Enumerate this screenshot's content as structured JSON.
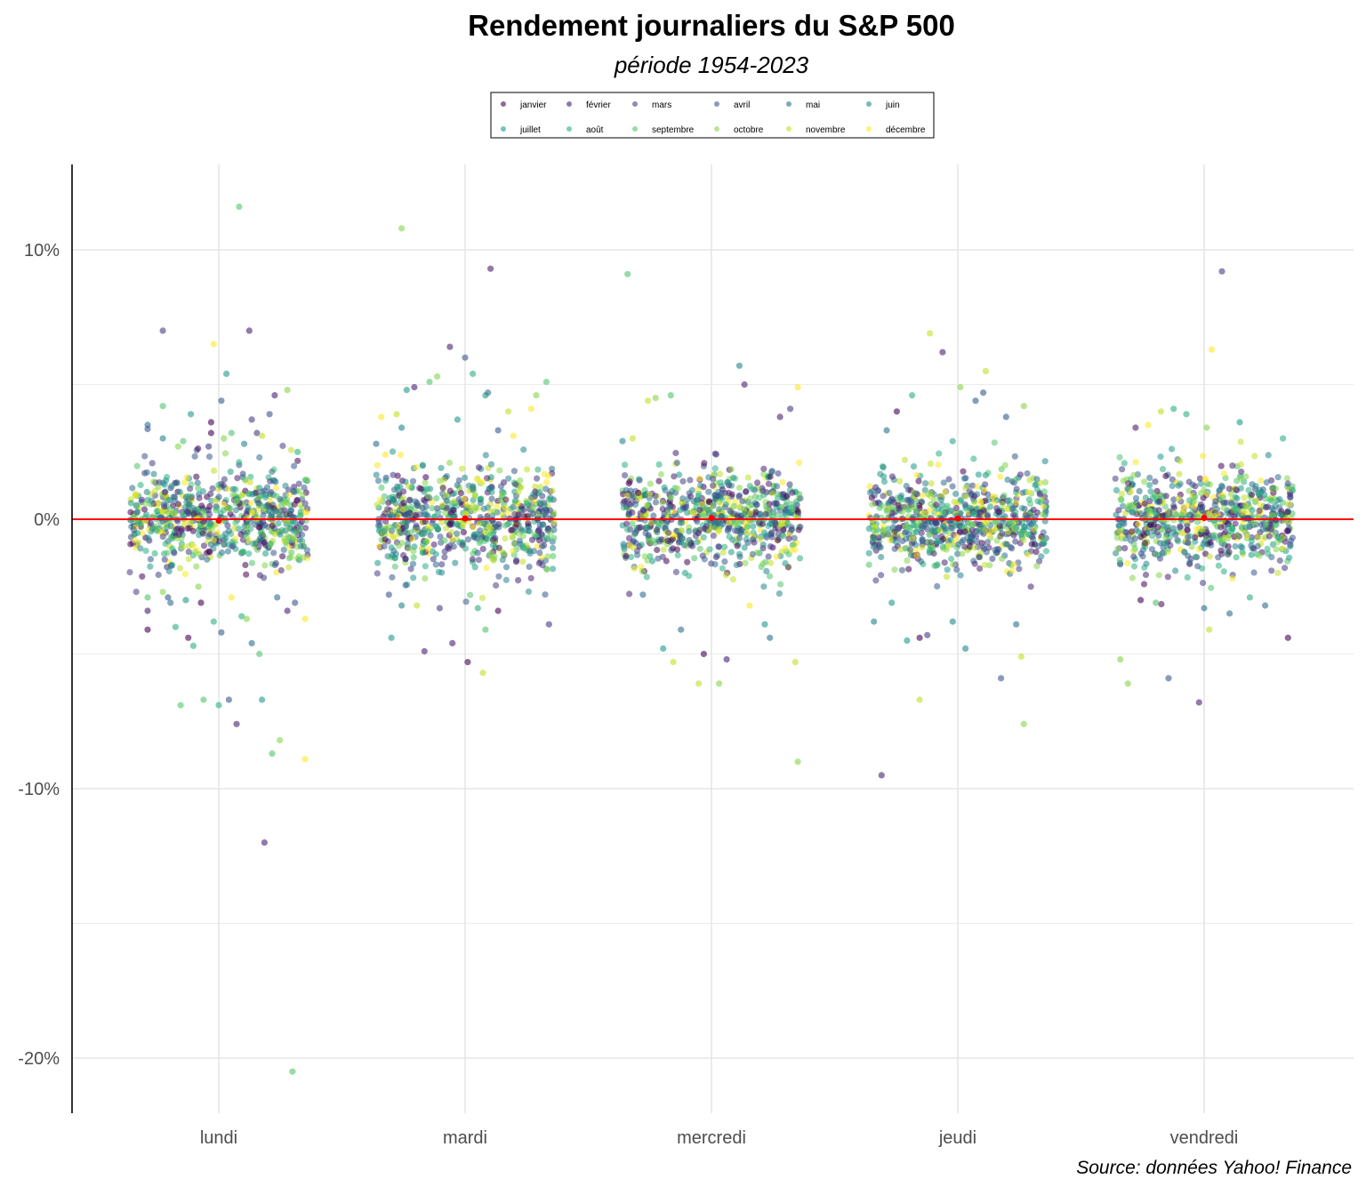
{
  "chart_data": {
    "type": "scatter",
    "title": "Rendement journaliers du S&P 500",
    "subtitle": "période 1954-2023",
    "source": "Source: données Yahoo! Finance",
    "xlabel": "",
    "ylabel": "",
    "categories": [
      "lundi",
      "mardi",
      "mercredi",
      "jeudi",
      "vendredi"
    ],
    "ylim": [
      -21,
      13.2
    ],
    "y_ticks": [
      10,
      0,
      -10,
      -20
    ],
    "y_tick_labels": [
      "10%",
      "0%",
      "-10%",
      "-20%"
    ],
    "y_minor_ticks": [
      5,
      -5,
      -15
    ],
    "grid": true,
    "legend_position": "top",
    "reference_line": {
      "y": 0,
      "color": "#ff0000"
    },
    "mean_points": [
      {
        "day": "lundi",
        "y": -0.05
      },
      {
        "day": "mardi",
        "y": 0.03
      },
      {
        "day": "mercredi",
        "y": 0.05
      },
      {
        "day": "jeudi",
        "y": 0.03
      },
      {
        "day": "vendredi",
        "y": 0.05
      }
    ],
    "months": [
      {
        "name": "janvier",
        "color": "#440154"
      },
      {
        "name": "février",
        "color": "#482173"
      },
      {
        "name": "mars",
        "color": "#433E85"
      },
      {
        "name": "avril",
        "color": "#38598C"
      },
      {
        "name": "mai",
        "color": "#2D708E"
      },
      {
        "name": "juin",
        "color": "#25858E"
      },
      {
        "name": "juillet",
        "color": "#1E9B8A"
      },
      {
        "name": "août",
        "color": "#2BB07F"
      },
      {
        "name": "septembre",
        "color": "#51C56A"
      },
      {
        "name": "octobre",
        "color": "#85D54A"
      },
      {
        "name": "novembre",
        "color": "#C2DF23"
      },
      {
        "name": "décembre",
        "color": "#FDE725"
      }
    ],
    "typical_range": {
      "day_core_sd": 0.9,
      "note": ""
    },
    "outliers": [
      {
        "day": "lundi",
        "j": -0.28,
        "y": 3.5,
        "m": 5
      },
      {
        "day": "lundi",
        "j": -0.28,
        "y": -4.1,
        "m": 1
      },
      {
        "day": "lundi",
        "j": -0.28,
        "y": 3.35,
        "m": 4
      },
      {
        "day": "lundi",
        "j": -0.28,
        "y": -3.4,
        "m": 2
      },
      {
        "day": "lundi",
        "j": -0.28,
        "y": -2.9,
        "m": 9
      },
      {
        "day": "lundi",
        "j": -0.22,
        "y": 7.0,
        "m": 3
      },
      {
        "day": "lundi",
        "j": -0.22,
        "y": 4.2,
        "m": 9
      },
      {
        "day": "lundi",
        "j": -0.22,
        "y": 3.0,
        "m": 6
      },
      {
        "day": "lundi",
        "j": -0.22,
        "y": -2.7,
        "m": 10
      },
      {
        "day": "lundi",
        "j": -0.2,
        "y": -2.9,
        "m": 4
      },
      {
        "day": "lundi",
        "j": -0.19,
        "y": -3.1,
        "m": 5
      },
      {
        "day": "lundi",
        "j": -0.17,
        "y": -4.0,
        "m": 8
      },
      {
        "day": "lundi",
        "j": -0.16,
        "y": 2.7,
        "m": 10
      },
      {
        "day": "lundi",
        "j": -0.15,
        "y": -6.9,
        "m": 9
      },
      {
        "day": "lundi",
        "j": -0.14,
        "y": 2.9,
        "m": 9
      },
      {
        "day": "lundi",
        "j": -0.13,
        "y": -3.0,
        "m": 7
      },
      {
        "day": "lundi",
        "j": -0.12,
        "y": -4.4,
        "m": 1
      },
      {
        "day": "lundi",
        "j": -0.11,
        "y": 3.9,
        "m": 7
      },
      {
        "day": "lundi",
        "j": -0.1,
        "y": -4.7,
        "m": 8
      },
      {
        "day": "lundi",
        "j": -0.08,
        "y": -2.5,
        "m": 10
      },
      {
        "day": "lundi",
        "j": -0.07,
        "y": -3.1,
        "m": 1
      },
      {
        "day": "lundi",
        "j": -0.06,
        "y": -6.7,
        "m": 9
      },
      {
        "day": "lundi",
        "j": -0.04,
        "y": 2.7,
        "m": 3
      },
      {
        "day": "lundi",
        "j": -0.03,
        "y": 3.2,
        "m": 1
      },
      {
        "day": "lundi",
        "j": -0.03,
        "y": 3.6,
        "m": 1
      },
      {
        "day": "lundi",
        "j": -0.02,
        "y": 6.5,
        "m": 12
      },
      {
        "day": "lundi",
        "j": -0.02,
        "y": -3.8,
        "m": 8
      },
      {
        "day": "lundi",
        "j": 0.0,
        "y": -6.9,
        "m": 8
      },
      {
        "day": "lundi",
        "j": 0.01,
        "y": 4.4,
        "m": 4
      },
      {
        "day": "lundi",
        "j": 0.01,
        "y": -4.2,
        "m": 4
      },
      {
        "day": "lundi",
        "j": 0.02,
        "y": 3.0,
        "m": 10
      },
      {
        "day": "lundi",
        "j": 0.03,
        "y": 5.4,
        "m": 7
      },
      {
        "day": "lundi",
        "j": 0.04,
        "y": -6.7,
        "m": 4
      },
      {
        "day": "lundi",
        "j": 0.05,
        "y": -2.9,
        "m": 12
      },
      {
        "day": "lundi",
        "j": 0.05,
        "y": 3.2,
        "m": 9
      },
      {
        "day": "lundi",
        "j": 0.07,
        "y": -7.6,
        "m": 2
      },
      {
        "day": "lundi",
        "j": 0.08,
        "y": 11.6,
        "m": 9
      },
      {
        "day": "lundi",
        "j": 0.09,
        "y": -3.6,
        "m": 8
      },
      {
        "day": "lundi",
        "j": 0.1,
        "y": 2.8,
        "m": 6
      },
      {
        "day": "lundi",
        "j": 0.11,
        "y": -3.7,
        "m": 10
      },
      {
        "day": "lundi",
        "j": 0.12,
        "y": 7.0,
        "m": 2
      },
      {
        "day": "lundi",
        "j": 0.13,
        "y": 3.7,
        "m": 3
      },
      {
        "day": "lundi",
        "j": 0.13,
        "y": -4.6,
        "m": 5
      },
      {
        "day": "lundi",
        "j": 0.15,
        "y": 3.2,
        "m": 3
      },
      {
        "day": "lundi",
        "j": 0.16,
        "y": -5.0,
        "m": 9
      },
      {
        "day": "lundi",
        "j": 0.17,
        "y": -6.7,
        "m": 7
      },
      {
        "day": "lundi",
        "j": 0.17,
        "y": 3.1,
        "m": 11
      },
      {
        "day": "lundi",
        "j": 0.18,
        "y": -12.0,
        "m": 2
      },
      {
        "day": "lundi",
        "j": 0.2,
        "y": 3.9,
        "m": 4
      },
      {
        "day": "lundi",
        "j": 0.21,
        "y": -8.7,
        "m": 9
      },
      {
        "day": "lundi",
        "j": 0.22,
        "y": 4.6,
        "m": 2
      },
      {
        "day": "lundi",
        "j": 0.23,
        "y": -2.9,
        "m": 5
      },
      {
        "day": "lundi",
        "j": 0.24,
        "y": -8.2,
        "m": 10
      },
      {
        "day": "lundi",
        "j": 0.27,
        "y": 4.8,
        "m": 10
      },
      {
        "day": "lundi",
        "j": 0.27,
        "y": -3.4,
        "m": 2
      },
      {
        "day": "lundi",
        "j": 0.29,
        "y": -20.5,
        "m": 9
      },
      {
        "day": "lundi",
        "j": 0.3,
        "y": -3.1,
        "m": 4
      },
      {
        "day": "lundi",
        "j": 0.31,
        "y": 2.5,
        "m": 8
      },
      {
        "day": "lundi",
        "j": 0.34,
        "y": -8.9,
        "m": 12
      },
      {
        "day": "lundi",
        "j": 0.34,
        "y": -3.7,
        "m": 12
      },
      {
        "day": "mardi",
        "j": -0.35,
        "y": 2.8,
        "m": 5
      },
      {
        "day": "mardi",
        "j": -0.33,
        "y": 3.8,
        "m": 12
      },
      {
        "day": "mardi",
        "j": -0.3,
        "y": -2.8,
        "m": 4
      },
      {
        "day": "mardi",
        "j": -0.29,
        "y": -4.4,
        "m": 7
      },
      {
        "day": "mardi",
        "j": -0.27,
        "y": 3.9,
        "m": 11
      },
      {
        "day": "mardi",
        "j": -0.25,
        "y": -3.2,
        "m": 6
      },
      {
        "day": "mardi",
        "j": -0.25,
        "y": 3.4,
        "m": 6
      },
      {
        "day": "mardi",
        "j": -0.25,
        "y": 10.8,
        "m": 10
      },
      {
        "day": "mardi",
        "j": -0.23,
        "y": 4.8,
        "m": 7
      },
      {
        "day": "mardi",
        "j": -0.2,
        "y": 4.9,
        "m": 2
      },
      {
        "day": "mardi",
        "j": -0.19,
        "y": -3.2,
        "m": 11
      },
      {
        "day": "mardi",
        "j": -0.16,
        "y": -4.9,
        "m": 2
      },
      {
        "day": "mardi",
        "j": -0.14,
        "y": 5.1,
        "m": 9
      },
      {
        "day": "mardi",
        "j": -0.11,
        "y": 5.3,
        "m": 10
      },
      {
        "day": "mardi",
        "j": -0.1,
        "y": -3.3,
        "m": 3
      },
      {
        "day": "mardi",
        "j": -0.06,
        "y": 6.4,
        "m": 2
      },
      {
        "day": "mardi",
        "j": -0.05,
        "y": -4.6,
        "m": 2
      },
      {
        "day": "mardi",
        "j": -0.03,
        "y": 3.7,
        "m": 7
      },
      {
        "day": "mardi",
        "j": 0.0,
        "y": 6.0,
        "m": 4
      },
      {
        "day": "mardi",
        "j": 0.01,
        "y": -5.3,
        "m": 1
      },
      {
        "day": "mardi",
        "j": 0.03,
        "y": 5.4,
        "m": 8
      },
      {
        "day": "mardi",
        "j": 0.05,
        "y": -3.3,
        "m": 8
      },
      {
        "day": "mardi",
        "j": 0.07,
        "y": -5.7,
        "m": 11
      },
      {
        "day": "mardi",
        "j": 0.08,
        "y": 4.6,
        "m": 7
      },
      {
        "day": "mardi",
        "j": 0.08,
        "y": -4.1,
        "m": 9
      },
      {
        "day": "mardi",
        "j": 0.09,
        "y": 4.7,
        "m": 5
      },
      {
        "day": "mardi",
        "j": 0.1,
        "y": 9.3,
        "m": 2
      },
      {
        "day": "mardi",
        "j": 0.13,
        "y": 3.3,
        "m": 4
      },
      {
        "day": "mardi",
        "j": 0.13,
        "y": -3.4,
        "m": 1
      },
      {
        "day": "mardi",
        "j": 0.17,
        "y": 4.0,
        "m": 11
      },
      {
        "day": "mardi",
        "j": 0.19,
        "y": 3.1,
        "m": 12
      },
      {
        "day": "mardi",
        "j": 0.26,
        "y": 4.1,
        "m": 12
      },
      {
        "day": "mardi",
        "j": 0.28,
        "y": 4.6,
        "m": 10
      },
      {
        "day": "mardi",
        "j": 0.32,
        "y": 5.1,
        "m": 9
      },
      {
        "day": "mardi",
        "j": 0.33,
        "y": -3.9,
        "m": 3
      },
      {
        "day": "mercredi",
        "j": -0.35,
        "y": 2.9,
        "m": 6
      },
      {
        "day": "mercredi",
        "j": -0.33,
        "y": 9.1,
        "m": 9
      },
      {
        "day": "mercredi",
        "j": -0.31,
        "y": 3.0,
        "m": 11
      },
      {
        "day": "mercredi",
        "j": -0.27,
        "y": -2.8,
        "m": 5
      },
      {
        "day": "mercredi",
        "j": -0.25,
        "y": 4.4,
        "m": 11
      },
      {
        "day": "mercredi",
        "j": -0.22,
        "y": 4.5,
        "m": 10
      },
      {
        "day": "mercredi",
        "j": -0.19,
        "y": -4.8,
        "m": 7
      },
      {
        "day": "mercredi",
        "j": -0.16,
        "y": 4.6,
        "m": 9
      },
      {
        "day": "mercredi",
        "j": -0.15,
        "y": -5.3,
        "m": 11
      },
      {
        "day": "mercredi",
        "j": -0.12,
        "y": -4.1,
        "m": 5
      },
      {
        "day": "mercredi",
        "j": -0.05,
        "y": -6.1,
        "m": 11
      },
      {
        "day": "mercredi",
        "j": -0.03,
        "y": -5.0,
        "m": 1
      },
      {
        "day": "mercredi",
        "j": 0.03,
        "y": -6.1,
        "m": 10
      },
      {
        "day": "mercredi",
        "j": 0.06,
        "y": -5.2,
        "m": 2
      },
      {
        "day": "mercredi",
        "j": 0.11,
        "y": 5.7,
        "m": 6
      },
      {
        "day": "mercredi",
        "j": 0.13,
        "y": 5.0,
        "m": 2
      },
      {
        "day": "mercredi",
        "j": 0.15,
        "y": -3.2,
        "m": 12
      },
      {
        "day": "mercredi",
        "j": 0.21,
        "y": -3.9,
        "m": 7
      },
      {
        "day": "mercredi",
        "j": 0.23,
        "y": -4.4,
        "m": 5
      },
      {
        "day": "mercredi",
        "j": 0.27,
        "y": 3.8,
        "m": 2
      },
      {
        "day": "mercredi",
        "j": 0.31,
        "y": 4.1,
        "m": 3
      },
      {
        "day": "mercredi",
        "j": 0.33,
        "y": -5.3,
        "m": 11
      },
      {
        "day": "mercredi",
        "j": 0.34,
        "y": -9.0,
        "m": 10
      },
      {
        "day": "mercredi",
        "j": 0.34,
        "y": 4.9,
        "m": 12
      },
      {
        "day": "jeudi",
        "j": -0.33,
        "y": -3.8,
        "m": 6
      },
      {
        "day": "jeudi",
        "j": -0.3,
        "y": -9.5,
        "m": 2
      },
      {
        "day": "jeudi",
        "j": -0.28,
        "y": 3.3,
        "m": 5
      },
      {
        "day": "jeudi",
        "j": -0.26,
        "y": -3.1,
        "m": 7
      },
      {
        "day": "jeudi",
        "j": -0.24,
        "y": 4.0,
        "m": 1
      },
      {
        "day": "jeudi",
        "j": -0.2,
        "y": -4.5,
        "m": 7
      },
      {
        "day": "jeudi",
        "j": -0.18,
        "y": 4.6,
        "m": 8
      },
      {
        "day": "jeudi",
        "j": -0.15,
        "y": -4.4,
        "m": 1
      },
      {
        "day": "jeudi",
        "j": -0.15,
        "y": -6.7,
        "m": 11
      },
      {
        "day": "jeudi",
        "j": -0.12,
        "y": -4.3,
        "m": 3
      },
      {
        "day": "jeudi",
        "j": -0.11,
        "y": 6.9,
        "m": 11
      },
      {
        "day": "jeudi",
        "j": -0.06,
        "y": 6.2,
        "m": 2
      },
      {
        "day": "jeudi",
        "j": -0.02,
        "y": -3.8,
        "m": 6
      },
      {
        "day": "jeudi",
        "j": 0.01,
        "y": 4.9,
        "m": 10
      },
      {
        "day": "jeudi",
        "j": 0.03,
        "y": -4.8,
        "m": 6
      },
      {
        "day": "jeudi",
        "j": 0.07,
        "y": 4.4,
        "m": 4
      },
      {
        "day": "jeudi",
        "j": 0.1,
        "y": 4.7,
        "m": 4
      },
      {
        "day": "jeudi",
        "j": 0.11,
        "y": 5.5,
        "m": 11
      },
      {
        "day": "jeudi",
        "j": 0.17,
        "y": -5.9,
        "m": 4
      },
      {
        "day": "jeudi",
        "j": 0.19,
        "y": 3.8,
        "m": 4
      },
      {
        "day": "jeudi",
        "j": 0.23,
        "y": -3.9,
        "m": 5
      },
      {
        "day": "jeudi",
        "j": 0.26,
        "y": -7.6,
        "m": 10
      },
      {
        "day": "jeudi",
        "j": 0.26,
        "y": 4.2,
        "m": 10
      },
      {
        "day": "jeudi",
        "j": 0.25,
        "y": -5.1,
        "m": 11
      },
      {
        "day": "vendredi",
        "j": -0.33,
        "y": -5.2,
        "m": 10
      },
      {
        "day": "vendredi",
        "j": -0.3,
        "y": -6.1,
        "m": 10
      },
      {
        "day": "vendredi",
        "j": -0.27,
        "y": 3.4,
        "m": 2
      },
      {
        "day": "vendredi",
        "j": -0.25,
        "y": -3.0,
        "m": 1
      },
      {
        "day": "vendredi",
        "j": -0.22,
        "y": 3.5,
        "m": 12
      },
      {
        "day": "vendredi",
        "j": -0.19,
        "y": -3.1,
        "m": 9
      },
      {
        "day": "vendredi",
        "j": -0.17,
        "y": 4.0,
        "m": 11
      },
      {
        "day": "vendredi",
        "j": -0.14,
        "y": -5.9,
        "m": 4
      },
      {
        "day": "vendredi",
        "j": -0.12,
        "y": 4.1,
        "m": 8
      },
      {
        "day": "vendredi",
        "j": -0.07,
        "y": 3.9,
        "m": 8
      },
      {
        "day": "vendredi",
        "j": 0.0,
        "y": -3.3,
        "m": 5
      },
      {
        "day": "vendredi",
        "j": 0.02,
        "y": -4.1,
        "m": 11
      },
      {
        "day": "vendredi",
        "j": 0.01,
        "y": 3.4,
        "m": 10
      },
      {
        "day": "vendredi",
        "j": 0.03,
        "y": 6.3,
        "m": 12
      },
      {
        "day": "vendredi",
        "j": -0.02,
        "y": -6.8,
        "m": 2
      },
      {
        "day": "vendredi",
        "j": 0.07,
        "y": 9.2,
        "m": 3
      },
      {
        "day": "vendredi",
        "j": 0.1,
        "y": -3.5,
        "m": 5
      },
      {
        "day": "vendredi",
        "j": 0.14,
        "y": 3.6,
        "m": 7
      },
      {
        "day": "vendredi",
        "j": 0.18,
        "y": -2.9,
        "m": 8
      },
      {
        "day": "vendredi",
        "j": 0.24,
        "y": -3.2,
        "m": 5
      },
      {
        "day": "vendredi",
        "j": 0.31,
        "y": 3.0,
        "m": 8
      },
      {
        "day": "vendredi",
        "j": 0.33,
        "y": -4.4,
        "m": 1
      }
    ]
  }
}
